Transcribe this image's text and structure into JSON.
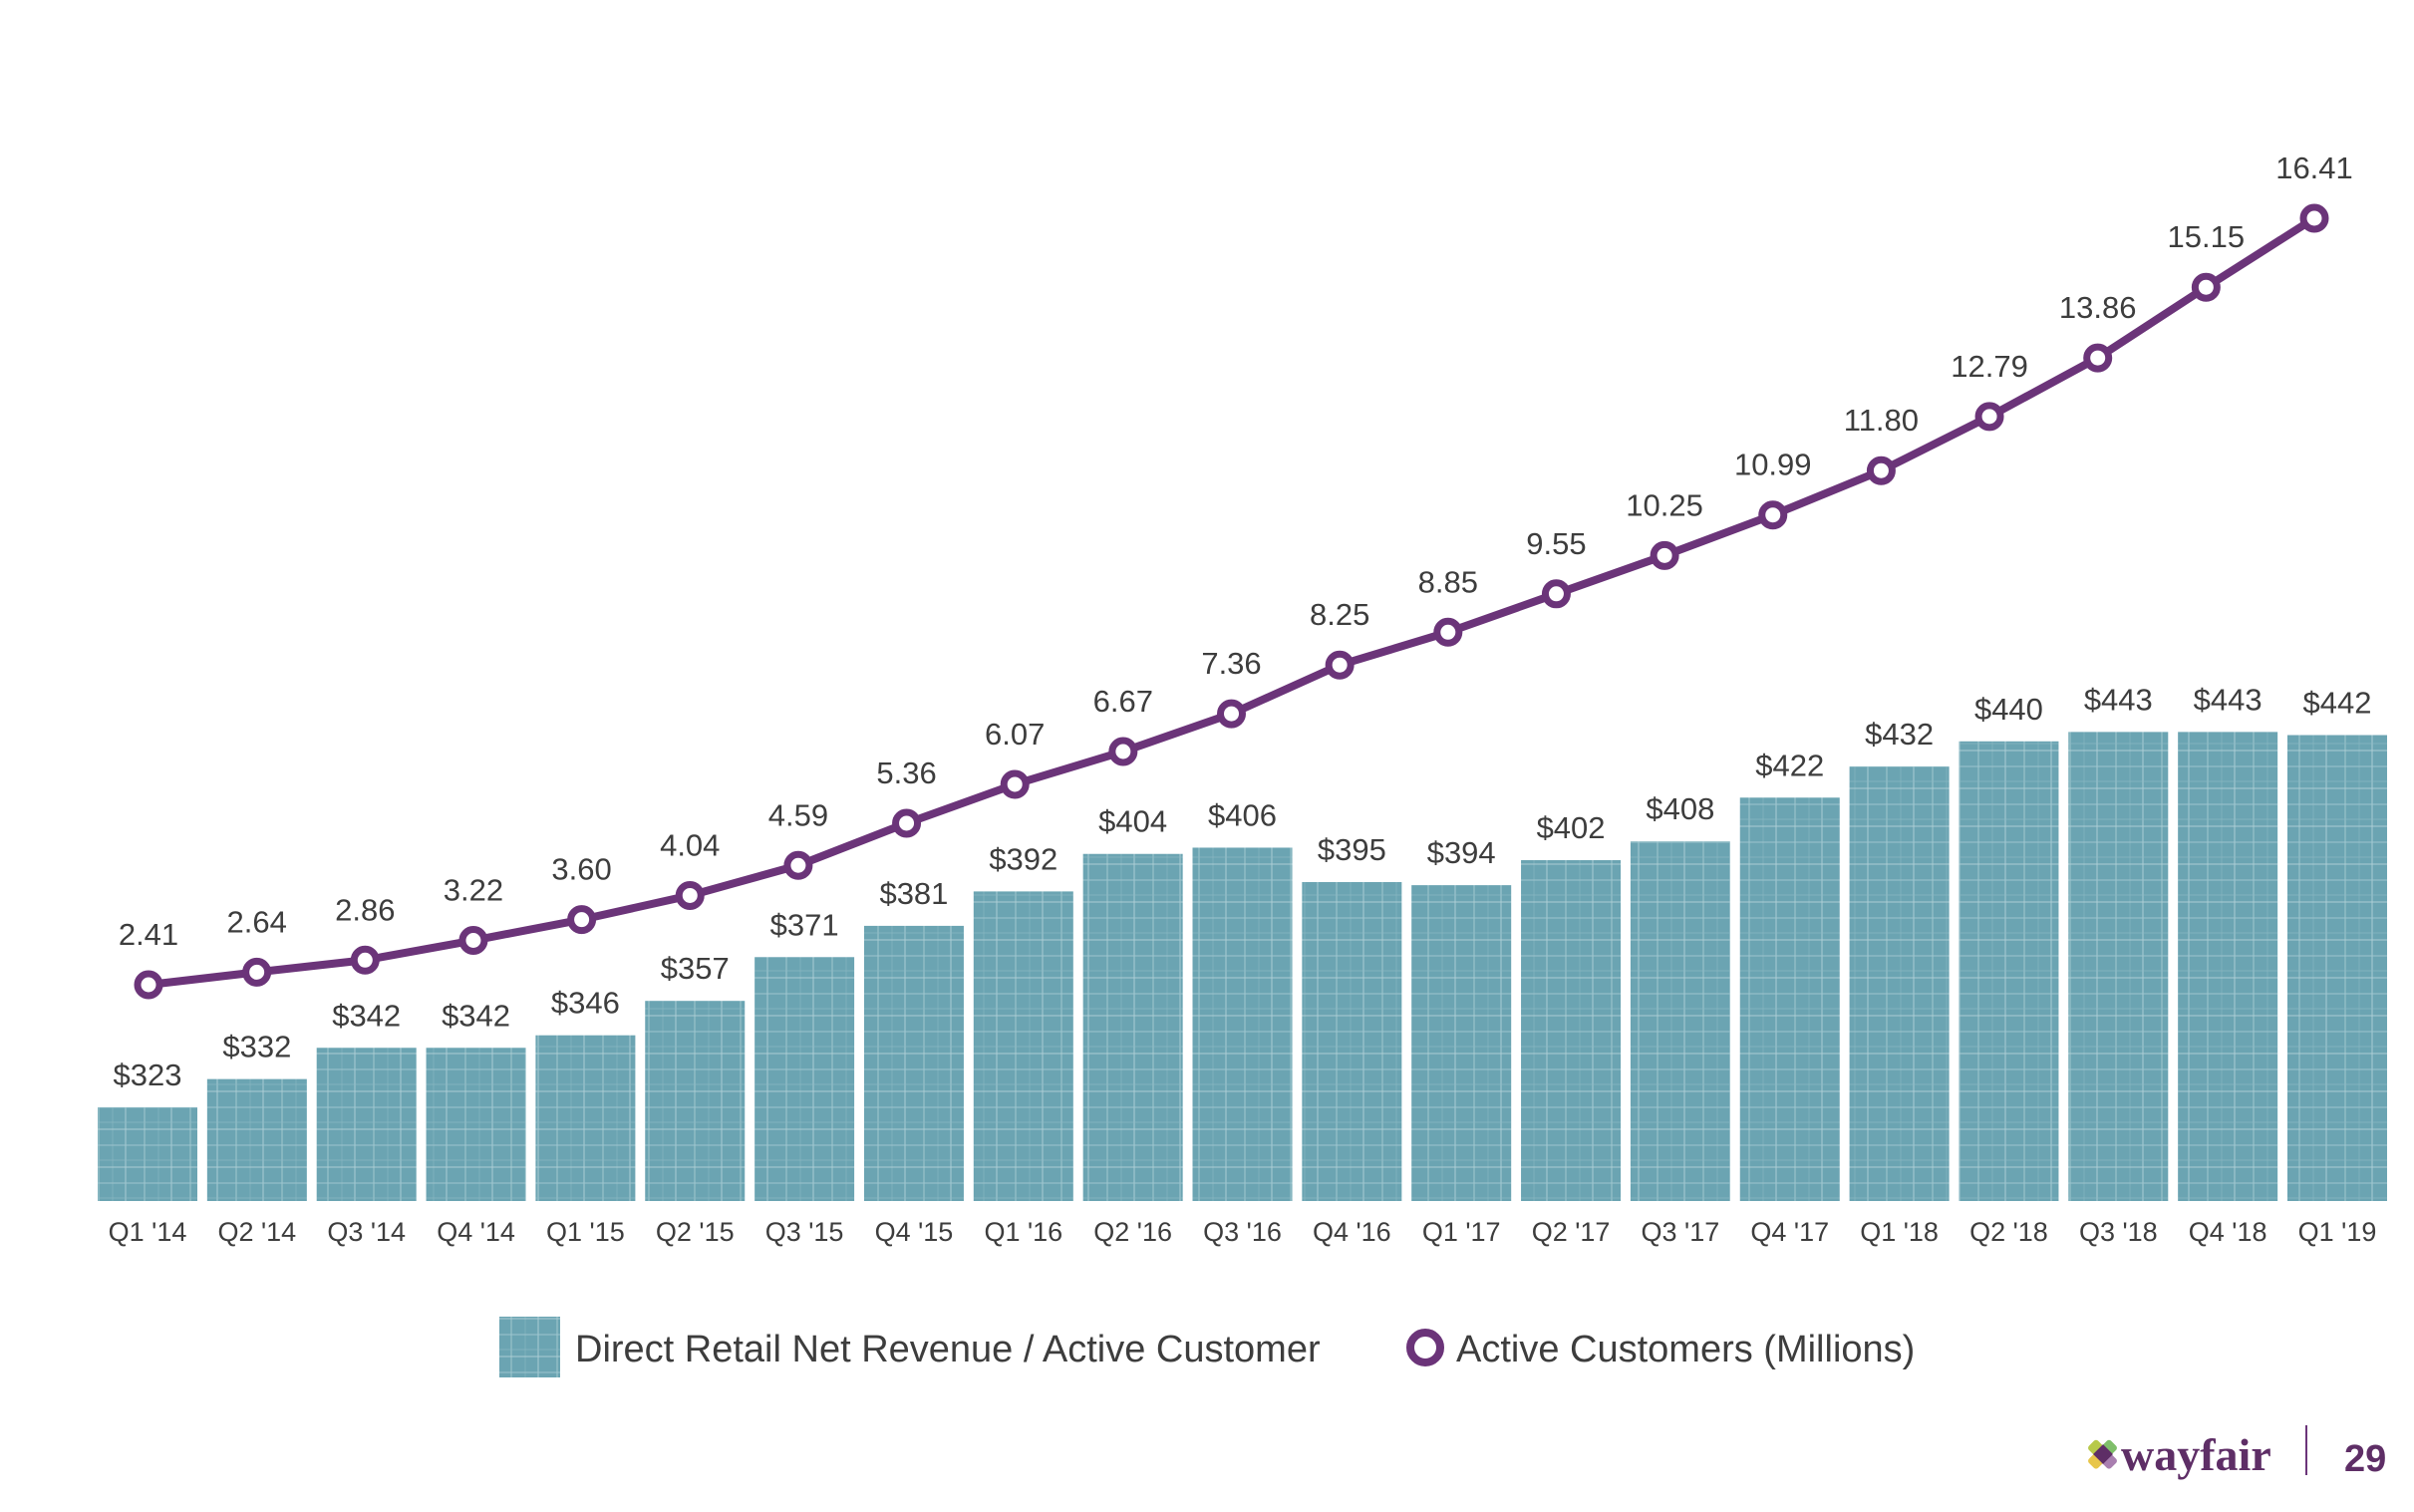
{
  "chart_data": {
    "type": "bar+line",
    "categories": [
      "Q1 '14",
      "Q2 '14",
      "Q3 '14",
      "Q4 '14",
      "Q1 '15",
      "Q2 '15",
      "Q3 '15",
      "Q4 '15",
      "Q1 '16",
      "Q2 '16",
      "Q3 '16",
      "Q4 '16",
      "Q1 '17",
      "Q2 '17",
      "Q3 '17",
      "Q4 '17",
      "Q1 '18",
      "Q2 '18",
      "Q3 '18",
      "Q4 '18",
      "Q1 '19"
    ],
    "series": [
      {
        "name": "Direct Retail Net Revenue / Active Customer",
        "type": "bar",
        "color": "#6ba4b2",
        "values": [
          323,
          332,
          342,
          342,
          346,
          357,
          371,
          381,
          392,
          404,
          406,
          395,
          394,
          402,
          408,
          422,
          432,
          440,
          443,
          443,
          442
        ],
        "labels": [
          "$323",
          "$332",
          "$342",
          "$342",
          "$346",
          "$357",
          "$371",
          "$381",
          "$392",
          "$404",
          "$406",
          "$395",
          "$394",
          "$402",
          "$408",
          "$422",
          "$432",
          "$440",
          "$443",
          "$443",
          "$442"
        ]
      },
      {
        "name": "Active Customers (Millions)",
        "type": "line",
        "color": "#6b3479",
        "values": [
          2.41,
          2.64,
          2.86,
          3.22,
          3.6,
          4.04,
          4.59,
          5.36,
          6.07,
          6.67,
          7.36,
          8.25,
          8.85,
          9.55,
          10.25,
          10.99,
          11.8,
          12.79,
          13.86,
          15.15,
          16.41
        ],
        "labels": [
          "2.41",
          "2.64",
          "2.86",
          "3.22",
          "3.60",
          "4.04",
          "4.59",
          "5.36",
          "6.07",
          "6.67",
          "7.36",
          "8.25",
          "8.85",
          "9.55",
          "10.25",
          "10.99",
          "11.80",
          "12.79",
          "13.86",
          "15.15",
          "16.41"
        ]
      }
    ],
    "bar_axis_range": [
      293,
      443
    ],
    "line_axis_range": [
      2.41,
      16.41
    ],
    "grid": false,
    "legend_placement": "bottom"
  },
  "footer": {
    "logo_text": "wayfair",
    "page_number": "29"
  }
}
